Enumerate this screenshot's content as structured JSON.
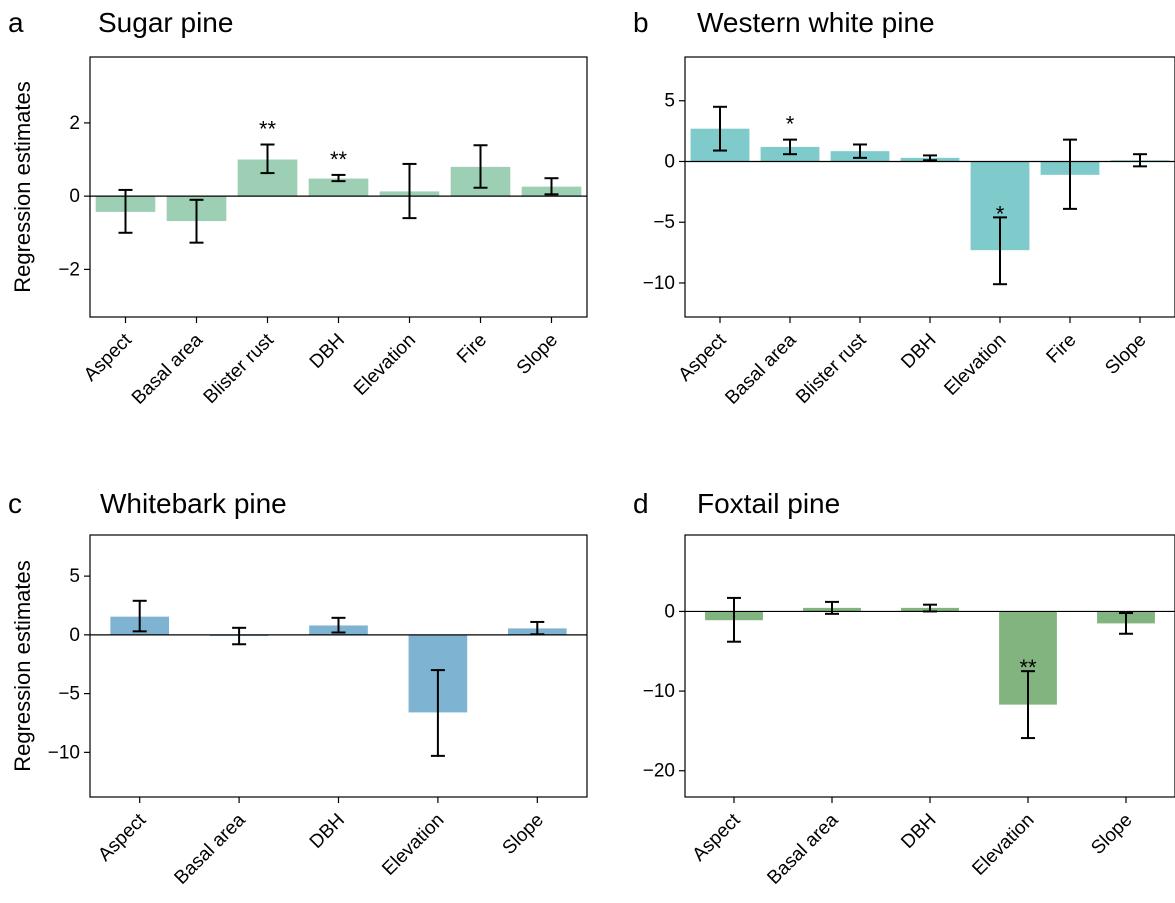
{
  "y_axis_title": "Regression estimates",
  "chart_data": [
    {
      "type": "bar",
      "panel_letter": "a",
      "title": "Sugar pine",
      "ylabel": "Regression estimates",
      "color": "#9ccfb4",
      "ylim": [
        -3.3,
        3.8
      ],
      "yticks": [
        -2,
        0,
        2
      ],
      "categories": [
        "Aspect",
        "Basal area",
        "Blister rust",
        "DBH",
        "Elevation",
        "Fire",
        "Slope"
      ],
      "values": [
        -0.43,
        -0.68,
        1.0,
        0.48,
        0.13,
        0.8,
        0.26
      ],
      "error_low": [
        -1.0,
        -1.27,
        0.63,
        0.41,
        -0.6,
        0.23,
        0.05
      ],
      "error_high": [
        0.17,
        -0.1,
        1.41,
        0.58,
        0.88,
        1.39,
        0.49
      ],
      "significance": [
        "",
        "",
        "**",
        "**",
        "",
        "",
        ""
      ]
    },
    {
      "type": "bar",
      "panel_letter": "b",
      "title": "Western white pine",
      "ylabel": "",
      "color": "#7fcacb",
      "ylim": [
        -12.8,
        8.6
      ],
      "yticks": [
        -10,
        -5,
        0,
        5
      ],
      "categories": [
        "Aspect",
        "Basal area",
        "Blister rust",
        "DBH",
        "Elevation",
        "Fire",
        "Slope"
      ],
      "values": [
        2.7,
        1.2,
        0.85,
        0.3,
        -7.3,
        -1.1,
        0.1
      ],
      "error_low": [
        0.9,
        0.6,
        0.3,
        0.1,
        -10.1,
        -3.9,
        -0.4
      ],
      "error_high": [
        4.5,
        1.8,
        1.4,
        0.5,
        -4.6,
        1.8,
        0.6
      ],
      "significance": [
        "",
        "*",
        "",
        "",
        "*",
        "",
        ""
      ]
    },
    {
      "type": "bar",
      "panel_letter": "c",
      "title": "Whitebark pine",
      "ylabel": "Regression estimates",
      "color": "#7fb3d2",
      "ylim": [
        -13.8,
        8.5
      ],
      "yticks": [
        -10,
        -5,
        0,
        5
      ],
      "categories": [
        "Aspect",
        "Basal area",
        "DBH",
        "Elevation",
        "Slope"
      ],
      "values": [
        1.55,
        -0.1,
        0.8,
        -6.6,
        0.55
      ],
      "error_low": [
        0.3,
        -0.8,
        0.2,
        -10.3,
        0.05
      ],
      "error_high": [
        2.9,
        0.6,
        1.45,
        -3.0,
        1.1
      ],
      "significance": [
        "",
        "",
        "",
        "",
        ""
      ]
    },
    {
      "type": "bar",
      "panel_letter": "d",
      "title": "Foxtail pine",
      "ylabel": "",
      "color": "#82b47f",
      "ylim": [
        -23.3,
        9.6
      ],
      "yticks": [
        -20,
        -10,
        0
      ],
      "categories": [
        "Aspect",
        "Basal area",
        "DBH",
        "Elevation",
        "Slope"
      ],
      "values": [
        -1.1,
        0.45,
        0.45,
        -11.7,
        -1.5
      ],
      "error_low": [
        -3.8,
        -0.3,
        0.0,
        -15.9,
        -2.8
      ],
      "error_high": [
        1.7,
        1.2,
        0.85,
        -7.5,
        -0.2
      ],
      "significance": [
        "",
        "",
        "",
        "**",
        ""
      ]
    }
  ]
}
